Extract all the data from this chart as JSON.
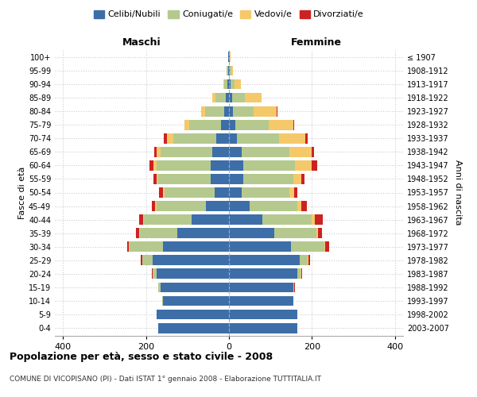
{
  "age_groups": [
    "0-4",
    "5-9",
    "10-14",
    "15-19",
    "20-24",
    "25-29",
    "30-34",
    "35-39",
    "40-44",
    "45-49",
    "50-54",
    "55-59",
    "60-64",
    "65-69",
    "70-74",
    "75-79",
    "80-84",
    "85-89",
    "90-94",
    "95-99",
    "100+"
  ],
  "birth_years": [
    "2003-2007",
    "1998-2002",
    "1993-1997",
    "1988-1992",
    "1983-1987",
    "1978-1982",
    "1973-1977",
    "1968-1972",
    "1963-1967",
    "1958-1962",
    "1953-1957",
    "1948-1952",
    "1943-1947",
    "1938-1942",
    "1933-1937",
    "1928-1932",
    "1923-1927",
    "1918-1922",
    "1913-1917",
    "1908-1912",
    "≤ 1907"
  ],
  "maschi": {
    "celibi": [
      170,
      175,
      160,
      165,
      175,
      185,
      160,
      125,
      90,
      55,
      35,
      45,
      45,
      40,
      30,
      20,
      12,
      8,
      3,
      2,
      1
    ],
    "coniugati": [
      0,
      0,
      2,
      5,
      10,
      25,
      80,
      90,
      115,
      120,
      120,
      125,
      130,
      125,
      105,
      75,
      45,
      25,
      8,
      3,
      1
    ],
    "vedovi": [
      0,
      0,
      0,
      0,
      0,
      0,
      1,
      2,
      2,
      3,
      5,
      5,
      8,
      10,
      15,
      12,
      10,
      8,
      3,
      1,
      0
    ],
    "divorziati": [
      0,
      0,
      0,
      0,
      1,
      2,
      5,
      8,
      10,
      8,
      8,
      8,
      8,
      5,
      8,
      1,
      1,
      0,
      0,
      0,
      0
    ]
  },
  "femmine": {
    "nubili": [
      165,
      165,
      155,
      155,
      165,
      170,
      150,
      110,
      80,
      50,
      30,
      35,
      35,
      30,
      20,
      15,
      10,
      8,
      3,
      2,
      1
    ],
    "coniugate": [
      0,
      0,
      1,
      3,
      8,
      20,
      80,
      100,
      120,
      115,
      115,
      120,
      125,
      115,
      100,
      80,
      50,
      30,
      10,
      3,
      1
    ],
    "vedove": [
      0,
      0,
      0,
      0,
      1,
      2,
      3,
      5,
      8,
      10,
      12,
      20,
      40,
      55,
      65,
      60,
      55,
      40,
      15,
      4,
      1
    ],
    "divorziate": [
      0,
      0,
      0,
      1,
      2,
      3,
      8,
      10,
      18,
      12,
      8,
      8,
      12,
      5,
      5,
      2,
      2,
      1,
      0,
      0,
      0
    ]
  },
  "colors": {
    "celibi_nubili": "#3d6ea8",
    "coniugati": "#b5c98e",
    "vedovi": "#f5c96a",
    "divorziati": "#cc2222"
  },
  "xlim": 420,
  "title": "Popolazione per età, sesso e stato civile - 2008",
  "subtitle": "COMUNE DI VICOPISANO (PI) - Dati ISTAT 1° gennaio 2008 - Elaborazione TUTTITALIA.IT",
  "ylabel_left": "Fasce di età",
  "ylabel_right": "Anni di nascita",
  "xlabel_maschi": "Maschi",
  "xlabel_femmine": "Femmine",
  "background_color": "#ffffff",
  "grid_color": "#cccccc"
}
